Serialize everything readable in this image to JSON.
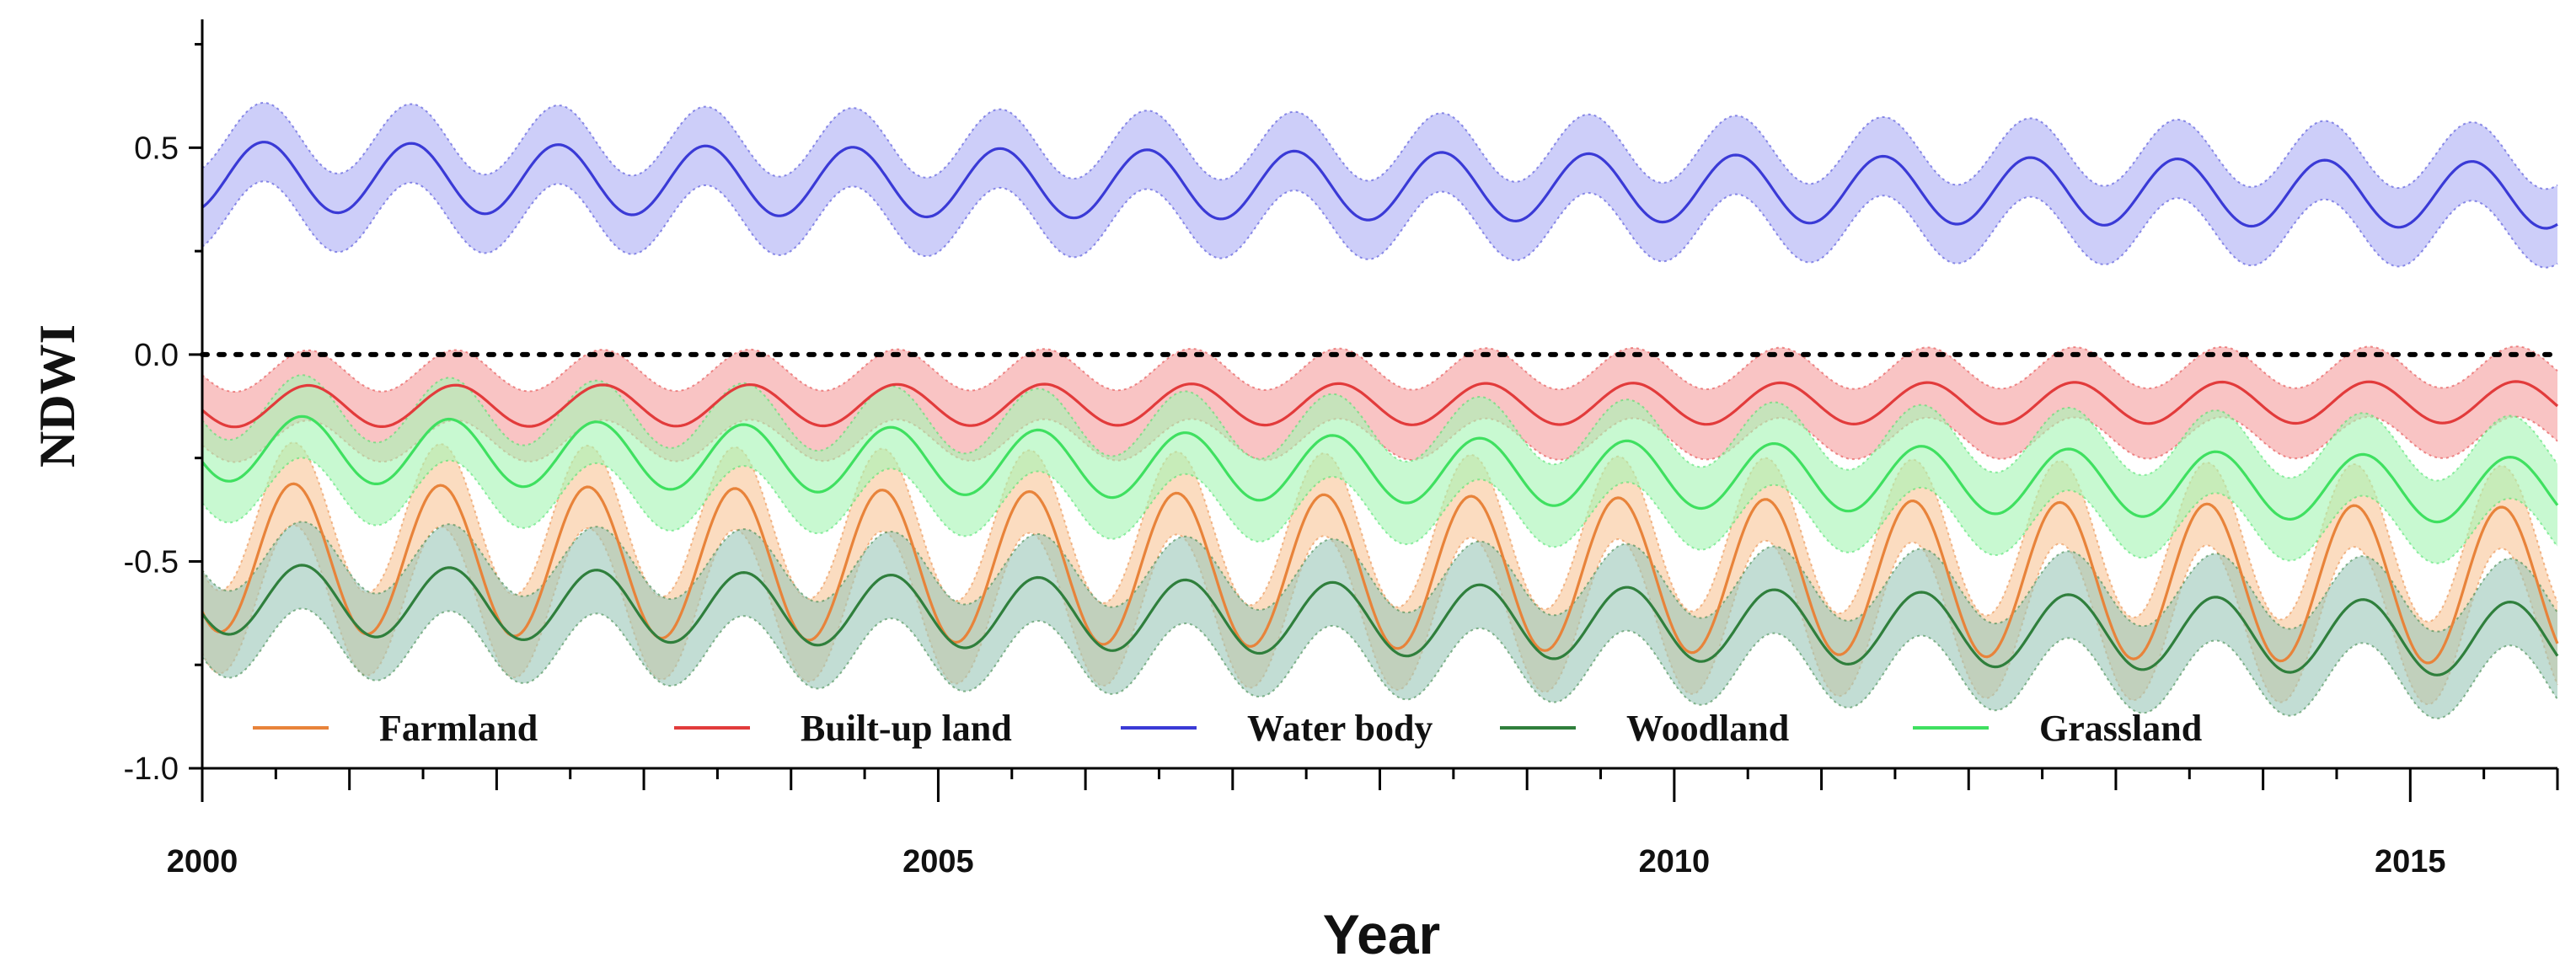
{
  "chart_data": {
    "type": "line",
    "title": "",
    "xlabel": "Year",
    "ylabel": "NDWI",
    "xlim": [
      2000,
      2016
    ],
    "ylim": [
      -1.0,
      0.8
    ],
    "x_ticks": [
      2000,
      2005,
      2010,
      2015
    ],
    "x_tick_labels": [
      "2000",
      "2005",
      "2010",
      "2015"
    ],
    "y_ticks": [
      -1.0,
      -0.5,
      0.0,
      0.5
    ],
    "y_tick_labels": [
      "-1.0",
      "-0.5",
      "0.0",
      "0.5"
    ],
    "reference_line": {
      "y": 0.0,
      "style": "dotted",
      "color": "#000000"
    },
    "legend_position": "bottom",
    "period_years": 1,
    "band_note": "shaded band = mean ± std",
    "series": [
      {
        "name": "Farmland",
        "color": "#e8833a",
        "band_color": "#f9c69a",
        "mean_start": -0.49,
        "mean_end": -0.56,
        "amplitude_start": 0.18,
        "amplitude_end": 0.19,
        "phase": 0.62,
        "band_halfwidth": 0.1
      },
      {
        "name": "Built-up land",
        "color": "#e23b3b",
        "band_color": "#f5a0a0",
        "mean_start": -0.125,
        "mean_end": -0.115,
        "amplitude_start": 0.05,
        "amplitude_end": 0.05,
        "phase": 0.72,
        "band_halfwidth": 0.085
      },
      {
        "name": "Water body",
        "color": "#3a3ad6",
        "band_color": "#aeb0f5",
        "mean_start": 0.43,
        "mean_end": 0.385,
        "amplitude_start": 0.085,
        "amplitude_end": 0.08,
        "phase": 0.42,
        "band_halfwidth": 0.095
      },
      {
        "name": "Woodland",
        "color": "#2f7f3c",
        "band_color": "#9dc8b9",
        "mean_start": -0.59,
        "mean_end": -0.69,
        "amplitude_start": 0.085,
        "amplitude_end": 0.09,
        "phase": 0.68,
        "band_halfwidth": 0.105
      },
      {
        "name": "Grassland",
        "color": "#3fe060",
        "band_color": "#a6f5b4",
        "mean_start": -0.225,
        "mean_end": -0.33,
        "amplitude_start": 0.08,
        "amplitude_end": 0.08,
        "phase": 0.68,
        "band_halfwidth": 0.1
      }
    ]
  }
}
